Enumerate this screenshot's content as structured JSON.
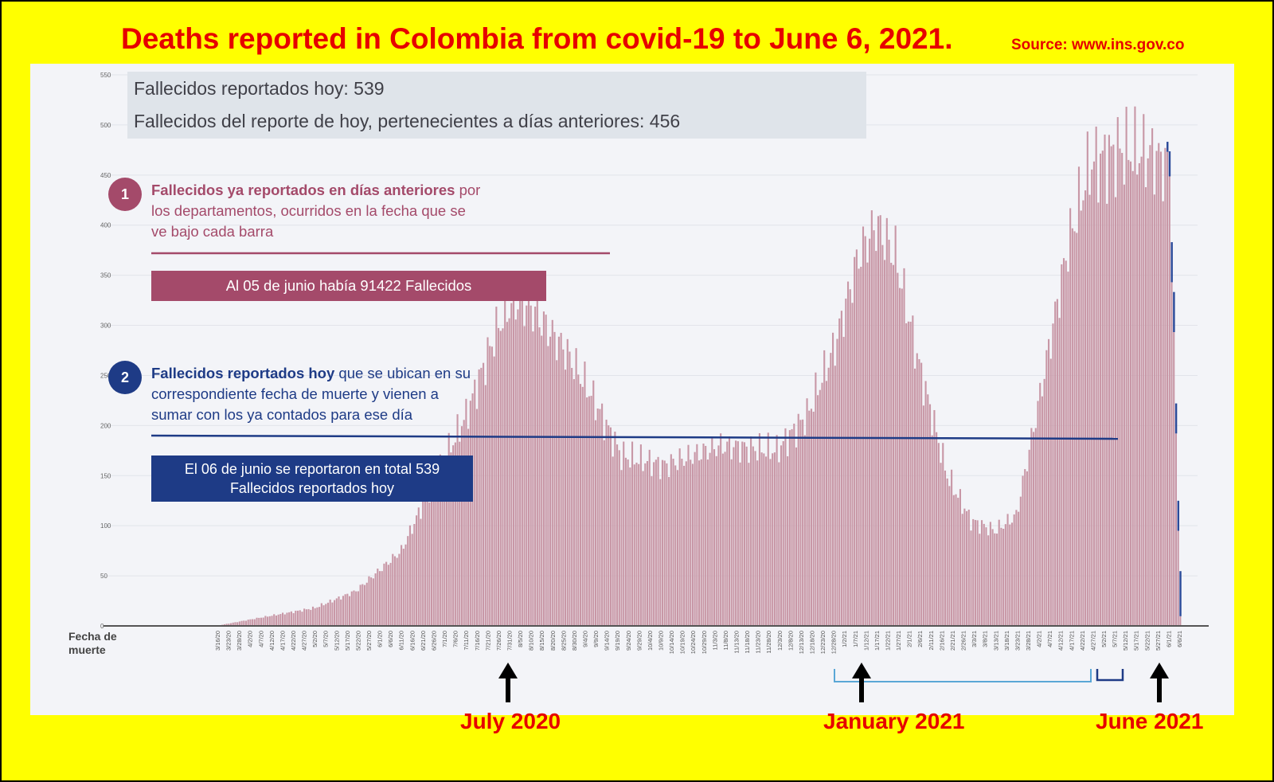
{
  "title": "Deaths reported in Colombia from covid-19 to June 6, 2021.",
  "source": "Source: www.ins.gov.co",
  "stats": {
    "today": "Fallecidos reportados hoy: 539",
    "previous": "Fallecidos del reporte de hoy, pertenecientes a días anteriores: 456"
  },
  "legend1": {
    "number": "1",
    "bold": "Fallecidos ya reportados en días anteriores",
    "text1": " por",
    "line2": "los departamentos, ocurridos en la fecha que se",
    "line3": "ve bajo cada barra",
    "note": "Al 05 de junio había 91422 Fallecidos",
    "color": "#a44a6a"
  },
  "legend2": {
    "number": "2",
    "bold": "Fallecidos reportados hoy",
    "text1": " que se ubican en su",
    "line2": "correspondiente fecha de muerte y vienen a",
    "line3": "sumar con los ya contados para ese día",
    "note_line1": "El 06 de junio se reportaron en total 539",
    "note_line2": "Fallecidos reportados hoy",
    "color": "#1e3b86"
  },
  "annotations": {
    "july": "July 2020",
    "january": "January 2021",
    "june": "June 2021"
  },
  "chart_data": {
    "type": "bar",
    "xlabel": "Fecha de muerte",
    "ylabel": "",
    "ylim": [
      0,
      550
    ],
    "yticks": [
      0,
      50,
      100,
      150,
      200,
      250,
      300,
      350,
      400,
      450,
      500,
      550
    ],
    "bar_color": "#c897a6",
    "today_color": "#2a4a99",
    "x_start": "2020-03-16",
    "x_end": "2021-06-06",
    "xtick_labels": [
      "3/16/20",
      "3/23/20",
      "3/28/20",
      "4/2/20",
      "4/7/20",
      "4/12/20",
      "4/17/20",
      "4/22/20",
      "4/27/20",
      "5/2/20",
      "5/7/20",
      "5/12/20",
      "5/17/20",
      "5/22/20",
      "5/27/20",
      "6/1/20",
      "6/6/20",
      "6/11/20",
      "6/16/20",
      "6/21/20",
      "6/26/20",
      "7/1/20",
      "7/6/20",
      "7/11/20",
      "7/16/20",
      "7/21/20",
      "7/26/20",
      "7/31/20",
      "8/5/20",
      "8/10/20",
      "8/15/20",
      "8/20/20",
      "8/25/20",
      "8/30/20",
      "9/4/20",
      "9/9/20",
      "9/14/20",
      "9/19/20",
      "9/24/20",
      "9/29/20",
      "10/4/20",
      "10/9/20",
      "10/14/20",
      "10/19/20",
      "10/24/20",
      "10/29/20",
      "11/3/20",
      "11/8/20",
      "11/13/20",
      "11/18/20",
      "11/23/20",
      "11/28/20",
      "12/3/20",
      "12/8/20",
      "12/13/20",
      "12/18/20",
      "12/23/20",
      "12/28/20",
      "1/2/21",
      "1/7/21",
      "1/12/21",
      "1/17/21",
      "1/22/21",
      "1/27/21",
      "2/1/21",
      "2/6/21",
      "2/11/21",
      "2/16/21",
      "2/21/21",
      "2/26/21",
      "3/3/21",
      "3/8/21",
      "3/13/21",
      "3/18/21",
      "3/23/21",
      "3/28/21",
      "4/2/21",
      "4/7/21",
      "4/12/21",
      "4/17/21",
      "4/22/21",
      "4/27/21",
      "5/2/21",
      "5/7/21",
      "5/12/21",
      "5/17/21",
      "5/22/21",
      "5/27/21",
      "6/1/21",
      "6/6/21"
    ],
    "daily_profile": [
      [
        "2020-03-16",
        0
      ],
      [
        "2020-04-05",
        8
      ],
      [
        "2020-05-01",
        18
      ],
      [
        "2020-05-20",
        35
      ],
      [
        "2020-06-10",
        75
      ],
      [
        "2020-06-25",
        145
      ],
      [
        "2020-07-10",
        210
      ],
      [
        "2020-07-25",
        300
      ],
      [
        "2020-08-01",
        325
      ],
      [
        "2020-08-08",
        320
      ],
      [
        "2020-08-25",
        275
      ],
      [
        "2020-09-05",
        235
      ],
      [
        "2020-09-20",
        170
      ],
      [
        "2020-10-10",
        160
      ],
      [
        "2020-11-05",
        180
      ],
      [
        "2020-12-01",
        175
      ],
      [
        "2020-12-15",
        210
      ],
      [
        "2020-12-28",
        280
      ],
      [
        "2021-01-08",
        370
      ],
      [
        "2021-01-16",
        400
      ],
      [
        "2021-01-25",
        370
      ],
      [
        "2021-02-05",
        260
      ],
      [
        "2021-02-18",
        150
      ],
      [
        "2021-03-01",
        105
      ],
      [
        "2021-03-12",
        95
      ],
      [
        "2021-03-22",
        110
      ],
      [
        "2021-04-02",
        230
      ],
      [
        "2021-04-15",
        380
      ],
      [
        "2021-04-25",
        460
      ],
      [
        "2021-05-10",
        475
      ],
      [
        "2021-05-25",
        470
      ],
      [
        "2021-06-01",
        455
      ],
      [
        "2021-06-06",
        10
      ]
    ],
    "reported_today_tail": [
      10,
      25,
      40,
      40,
      30,
      30,
      45
    ]
  }
}
